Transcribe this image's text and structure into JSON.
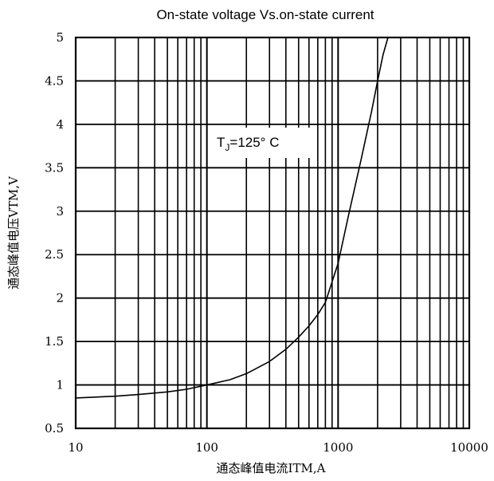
{
  "chart_data": {
    "type": "line",
    "title": "On-state voltage  Vs.on-state current",
    "xlabel": "通态峰值电流ITM,A",
    "ylabel": "通态峰值电压VTM,V",
    "x_scale": "log",
    "xlim": [
      10,
      10000
    ],
    "ylim": [
      0.5,
      5
    ],
    "x_ticks": [
      "10",
      "100",
      "1000",
      "10000"
    ],
    "y_ticks": [
      "0.5",
      "1",
      "1.5",
      "2",
      "2.5",
      "3",
      "3.5",
      "4",
      "4.5",
      "5"
    ],
    "grid": true,
    "annotation": "TJ=125° C",
    "annotation_parts": {
      "base": "T",
      "sub": "J",
      "rest": "=125° C"
    },
    "series": [
      {
        "name": "",
        "color": "#000000",
        "x": [
          10,
          20,
          30,
          50,
          70,
          100,
          150,
          200,
          300,
          400,
          500,
          600,
          700,
          800,
          1000,
          1200,
          1500,
          1800,
          2000,
          2200,
          2400
        ],
        "y": [
          0.85,
          0.87,
          0.89,
          0.92,
          0.95,
          1.0,
          1.06,
          1.13,
          1.27,
          1.41,
          1.55,
          1.68,
          1.81,
          1.95,
          2.4,
          2.95,
          3.6,
          4.15,
          4.5,
          4.8,
          5.0
        ]
      }
    ]
  }
}
